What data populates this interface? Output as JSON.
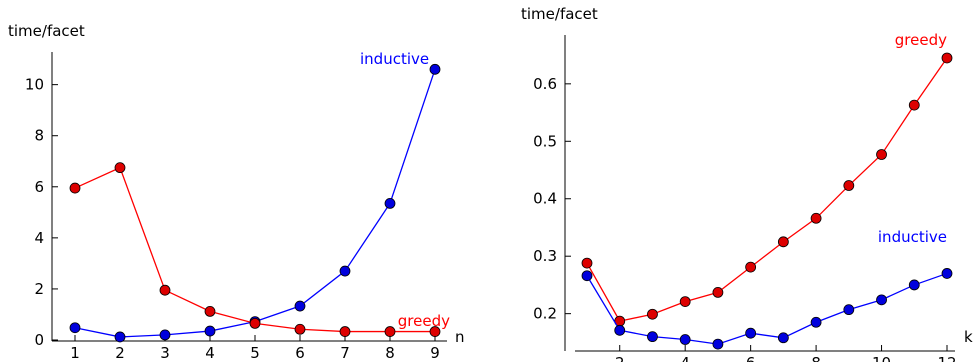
{
  "colors": {
    "inductive": "#0000ff",
    "greedy": "#ff0000",
    "marker_inductive": "#0000dd",
    "marker_greedy": "#dd0000"
  },
  "chart_data": [
    {
      "type": "line",
      "ylabel": "time/facet",
      "xlabel": "n",
      "x": [
        1,
        2,
        3,
        4,
        5,
        6,
        7,
        8,
        9
      ],
      "xticks": [
        "1",
        "2",
        "3",
        "4",
        "5",
        "6",
        "7",
        "8",
        "9"
      ],
      "yticks": [
        "0",
        "2",
        "4",
        "6",
        "8",
        "10"
      ],
      "xlim": [
        1,
        9
      ],
      "ylim": [
        0,
        11.2
      ],
      "grid": false,
      "series": [
        {
          "name": "inductive",
          "color": "#0000ff",
          "values": [
            0.48,
            0.12,
            0.2,
            0.35,
            0.72,
            1.33,
            2.7,
            5.35,
            10.6
          ]
        },
        {
          "name": "greedy",
          "color": "#ff0000",
          "values": [
            5.95,
            6.75,
            1.95,
            1.12,
            0.65,
            0.42,
            0.33,
            0.33,
            0.33
          ]
        }
      ]
    },
    {
      "type": "line",
      "ylabel": "time/facet",
      "xlabel": "k",
      "x": [
        1,
        2,
        3,
        4,
        5,
        6,
        7,
        8,
        9,
        10,
        11,
        12
      ],
      "xticks": [
        "2",
        "4",
        "6",
        "8",
        "10",
        "12"
      ],
      "yticks": [
        "0.2",
        "0.3",
        "0.4",
        "0.5",
        "0.6"
      ],
      "xlim": [
        1,
        12
      ],
      "ylim": [
        0.135,
        0.685
      ],
      "grid": false,
      "series": [
        {
          "name": "greedy",
          "color": "#ff0000",
          "values": [
            0.288,
            0.187,
            0.199,
            0.221,
            0.237,
            0.281,
            0.325,
            0.366,
            0.423,
            0.477,
            0.563,
            0.645
          ]
        },
        {
          "name": "inductive",
          "color": "#0000ff",
          "values": [
            0.266,
            0.171,
            0.16,
            0.155,
            0.147,
            0.166,
            0.158,
            0.185,
            0.207,
            0.224,
            0.25,
            0.27
          ]
        }
      ]
    }
  ]
}
